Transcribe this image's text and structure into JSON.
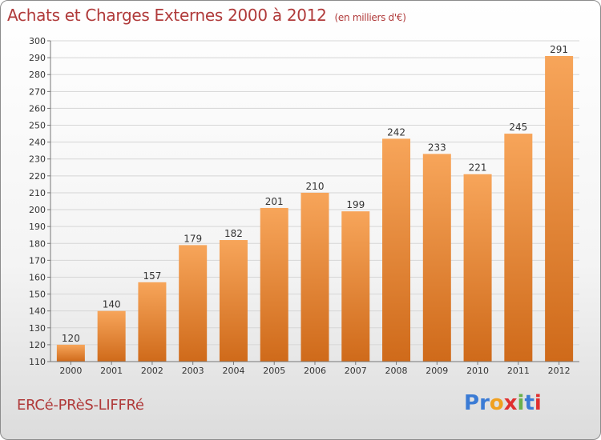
{
  "header": {
    "title": "Achats et Charges Externes 2000 à 2012",
    "unit": "(en milliers d'€)"
  },
  "footer": {
    "commune": "ERCé-PRèS-LIFFRé",
    "logo_letters": [
      "P",
      "r",
      "o",
      "x",
      "i",
      "t",
      "i"
    ],
    "logo_colors": [
      "#3a7bd5",
      "#3a7bd5",
      "#f0a020",
      "#e03030",
      "#6ab04c",
      "#3a7bd5",
      "#e03030"
    ]
  },
  "chart_data": {
    "type": "bar",
    "title": "Achats et Charges Externes 2000 à 2012",
    "subtitle": "(en milliers d'€)",
    "categories": [
      "2000",
      "2001",
      "2002",
      "2003",
      "2004",
      "2005",
      "2006",
      "2007",
      "2008",
      "2009",
      "2010",
      "2011",
      "2012"
    ],
    "values": [
      120,
      140,
      157,
      179,
      182,
      201,
      210,
      199,
      242,
      233,
      221,
      245,
      291
    ],
    "ylim": [
      110,
      300
    ],
    "yticks": [
      110,
      120,
      130,
      140,
      150,
      160,
      170,
      180,
      190,
      200,
      210,
      220,
      230,
      240,
      250,
      260,
      270,
      280,
      290,
      300
    ],
    "grid": true,
    "colors": {
      "bar_top": "#f7a55a",
      "bar_bottom": "#cf6a1a",
      "grid": "#d6d6d6"
    }
  }
}
